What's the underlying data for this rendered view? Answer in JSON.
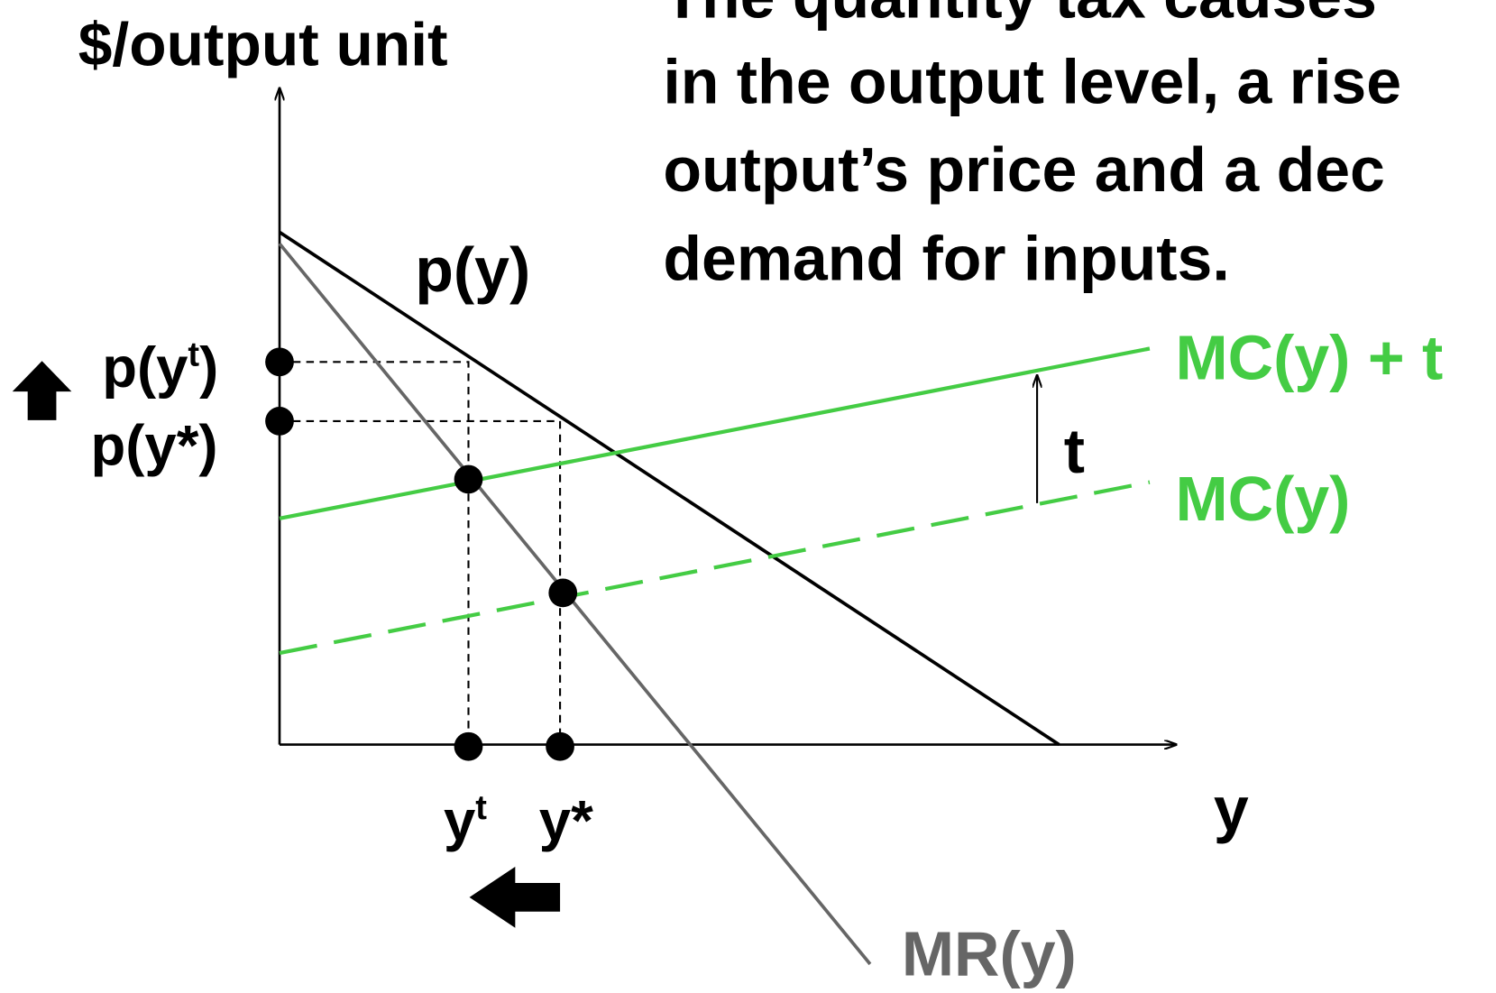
{
  "axis": {
    "y_label": "$/output unit",
    "x_label": "y"
  },
  "caption": {
    "lines": [
      "The quantity tax causes",
      "in the output level, a rise",
      "output’s price and a dec",
      "demand for inputs."
    ]
  },
  "labels": {
    "demand": "p(y)",
    "price_tax": {
      "base": "p(y",
      "sup": "t",
      "close": ")"
    },
    "price_star": "p(y*)",
    "mc_tax": "MC(y) + t",
    "tax": "t",
    "mc": "MC(y)",
    "output_tax": {
      "base": "y",
      "sup": "t"
    },
    "output_star": "y*",
    "mr": "MR(y)"
  }
}
